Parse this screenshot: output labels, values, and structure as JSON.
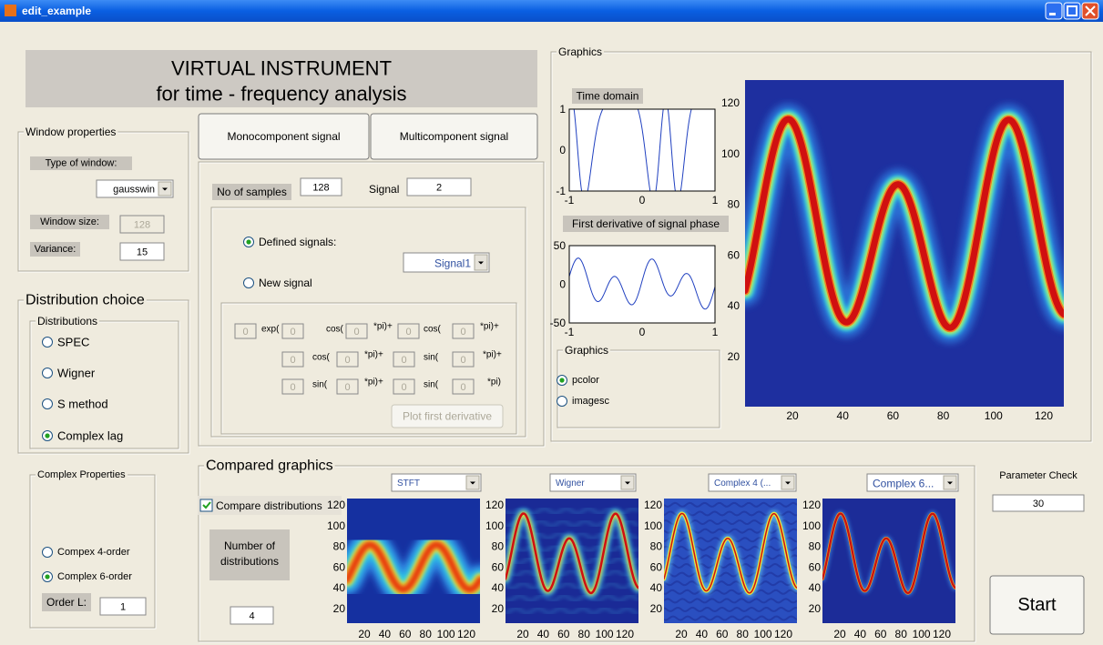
{
  "window": {
    "title": "edit_example"
  },
  "header": {
    "line1": "VIRTUAL INSTRUMENT",
    "line2": "for time  - frequency analysis"
  },
  "window_properties": {
    "title": "Window properties",
    "type_label": "Type of window:",
    "type_value": "gausswin",
    "size_label": "Window size:",
    "size_value": 128,
    "variance_label": "Variance:",
    "variance_value": 15
  },
  "distribution_choice": {
    "title": "Distribution choice",
    "group_title": "Distributions",
    "options": [
      "SPEC",
      "Wigner",
      "S method",
      "Complex lag"
    ],
    "selected": 3
  },
  "complex_properties": {
    "title": "Complex Properties",
    "options": [
      "Compex 4-order",
      "Complex 6-order"
    ],
    "selected": 1,
    "order_label": "Order L:",
    "order_value": 1
  },
  "signal_buttons": [
    "Monocomponent signal",
    "Multicomponent signal"
  ],
  "signal_panel": {
    "samples_label": "No of samples",
    "samples_value": 128,
    "signal_label": "Signal",
    "signal_value": 2,
    "options": [
      "Defined signals:",
      "New signal"
    ],
    "selected": 0,
    "defined_value": "Signal1",
    "equation": {
      "rows": [
        [
          0,
          "exp(",
          0,
          "cos(",
          0,
          "*pi)+",
          0,
          "cos(",
          0,
          "*pi)+"
        ],
        [
          0,
          "cos(",
          0,
          "*pi)+",
          0,
          "sin(",
          0,
          "*pi)+"
        ],
        [
          0,
          "sin(",
          0,
          "*pi)+",
          0,
          "sin(",
          0,
          "*pi)"
        ]
      ]
    },
    "derivative_button": "Plot first derivative"
  },
  "graphics": {
    "title": "Graphics",
    "time_domain": {
      "title": "Time domain",
      "yticks": [
        1,
        0,
        -1
      ],
      "xticks": [
        -1,
        0,
        1
      ]
    },
    "derivative": {
      "title": "First derivative of signal phase",
      "yticks": [
        50,
        0,
        -50
      ],
      "xticks": [
        -1,
        0,
        1
      ]
    },
    "mode": {
      "title": "Graphics",
      "options": [
        "pcolor",
        "imagesc"
      ],
      "selected": 0
    },
    "tfd": {
      "xticks": [
        20,
        40,
        60,
        80,
        100,
        120
      ],
      "yticks": [
        20,
        40,
        60,
        80,
        100,
        120
      ]
    }
  },
  "compared": {
    "title": "Compared graphics",
    "compare_label": "Compare distributions",
    "compare_checked": true,
    "count_label": [
      "Number of",
      "distributions"
    ],
    "count_value": 4,
    "plots": [
      {
        "method": "STFT",
        "xticks": [
          20,
          40,
          60,
          80,
          100,
          120
        ],
        "yticks": [
          20,
          40,
          60,
          80,
          100,
          120
        ]
      },
      {
        "method": "Wigner",
        "xticks": [
          20,
          40,
          60,
          80,
          100,
          120
        ],
        "yticks": [
          20,
          40,
          60,
          80,
          100,
          120
        ]
      },
      {
        "method": "Complex 4 (...",
        "xticks": [
          20,
          40,
          60,
          80,
          100,
          120
        ],
        "yticks": [
          20,
          40,
          60,
          80,
          100,
          120
        ]
      },
      {
        "method": "Complex 6...",
        "xticks": [
          20,
          40,
          60,
          80,
          100,
          120
        ],
        "yticks": [
          20,
          40,
          60,
          80,
          100,
          120
        ]
      }
    ]
  },
  "parameter": {
    "label": "Parameter Check",
    "value": 30
  },
  "start_button": "Start"
}
